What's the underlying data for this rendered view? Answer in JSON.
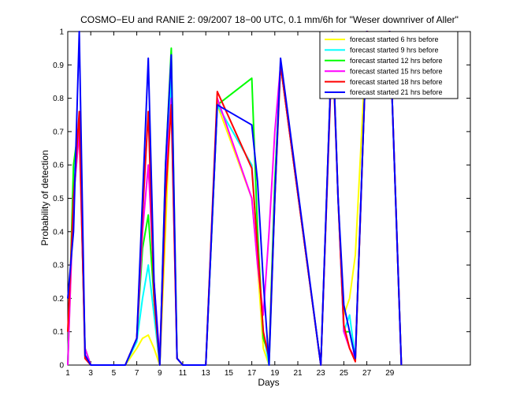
{
  "chart_data": {
    "type": "line",
    "title": "COSMO−EU and RANIE 2: 09/2007 18−00 UTC, 0.1 mm/6h for \"Weser downriver of Aller\"",
    "xlabel": "Days",
    "ylabel": "Probability of detection",
    "xlim": [
      1,
      36
    ],
    "ylim": [
      0,
      1
    ],
    "x_ticks": [
      1,
      3,
      5,
      7,
      9,
      11,
      13,
      15,
      17,
      19,
      21,
      23,
      25,
      27,
      29
    ],
    "y_ticks": [
      0,
      0.1,
      0.2,
      0.3,
      0.4,
      0.5,
      0.6,
      0.7,
      0.8,
      0.9,
      1
    ],
    "y_tick_labels": [
      "0",
      "0.1",
      "0.2",
      "0.3",
      "0.4",
      "0.5",
      "0.6",
      "0.7",
      "0.8",
      "0.9",
      "1"
    ],
    "grid": false,
    "legend_position": "top-right",
    "series": [
      {
        "name": "forecast started 6 hrs before",
        "color": "#ffff00",
        "points": [
          [
            1,
            0
          ],
          [
            1.5,
            0.5
          ],
          [
            2,
            0.7
          ],
          [
            2.5,
            0.05
          ],
          [
            3,
            0
          ],
          [
            3.5,
            0
          ],
          [
            4,
            0
          ],
          [
            5,
            0
          ],
          [
            6,
            0
          ],
          [
            7,
            0.05
          ],
          [
            7.5,
            0.08
          ],
          [
            8,
            0.09
          ],
          [
            8.5,
            0.05
          ],
          [
            9,
            0
          ],
          [
            9.5,
            0.4
          ],
          [
            10,
            0.85
          ],
          [
            10.5,
            0.02
          ],
          [
            11,
            0
          ],
          [
            12,
            0
          ],
          [
            13,
            0
          ],
          [
            14,
            0.78
          ],
          [
            17,
            0.5
          ],
          [
            17.5,
            0.3
          ],
          [
            18,
            0.05
          ],
          [
            18.5,
            0
          ],
          [
            19,
            0.5
          ],
          [
            19.5,
            0.9
          ],
          [
            23,
            0
          ],
          [
            24,
            1
          ],
          [
            24.5,
            0.5
          ],
          [
            25,
            0.15
          ],
          [
            25.5,
            0.2
          ],
          [
            26,
            0.33
          ],
          [
            27,
            1
          ],
          [
            28,
            0.99
          ],
          [
            29,
            1
          ],
          [
            30,
            0
          ]
        ]
      },
      {
        "name": "forecast started 9 hrs before",
        "color": "#00ffff",
        "points": [
          [
            1,
            0
          ],
          [
            1.5,
            0.55
          ],
          [
            2,
            0.72
          ],
          [
            2.5,
            0.05
          ],
          [
            3,
            0
          ],
          [
            3.5,
            0
          ],
          [
            4,
            0
          ],
          [
            5,
            0
          ],
          [
            6,
            0
          ],
          [
            7,
            0.07
          ],
          [
            7.5,
            0.2
          ],
          [
            8,
            0.3
          ],
          [
            8.5,
            0.15
          ],
          [
            9,
            0
          ],
          [
            9.5,
            0.5
          ],
          [
            10,
            0.88
          ],
          [
            10.5,
            0.02
          ],
          [
            11,
            0
          ],
          [
            12,
            0
          ],
          [
            13,
            0
          ],
          [
            14,
            0.78
          ],
          [
            17,
            0.6
          ],
          [
            17.5,
            0.35
          ],
          [
            18,
            0.1
          ],
          [
            18.5,
            0
          ],
          [
            19,
            0.55
          ],
          [
            19.5,
            0.9
          ],
          [
            23,
            0
          ],
          [
            24,
            1
          ],
          [
            24.5,
            0.5
          ],
          [
            25,
            0.1
          ],
          [
            25.5,
            0.15
          ],
          [
            26,
            0.02
          ],
          [
            27,
            1
          ],
          [
            28,
            0.99
          ],
          [
            29,
            1
          ],
          [
            30,
            0
          ]
        ]
      },
      {
        "name": "forecast started 12 hrs before",
        "color": "#00ff00",
        "points": [
          [
            1,
            0
          ],
          [
            1.5,
            0.6
          ],
          [
            2,
            0.73
          ],
          [
            2.5,
            0.05
          ],
          [
            3,
            0
          ],
          [
            3.5,
            0
          ],
          [
            4,
            0
          ],
          [
            5,
            0
          ],
          [
            6,
            0
          ],
          [
            7,
            0.08
          ],
          [
            7.5,
            0.35
          ],
          [
            8,
            0.45
          ],
          [
            8.5,
            0.2
          ],
          [
            9,
            0
          ],
          [
            9.5,
            0.6
          ],
          [
            10,
            0.95
          ],
          [
            10.5,
            0.02
          ],
          [
            11,
            0
          ],
          [
            12,
            0
          ],
          [
            13,
            0
          ],
          [
            14,
            0.78
          ],
          [
            17,
            0.86
          ],
          [
            17.5,
            0.4
          ],
          [
            18,
            0.08
          ],
          [
            18.5,
            0.03
          ],
          [
            19,
            0.55
          ],
          [
            19.5,
            0.9
          ],
          [
            23,
            0
          ],
          [
            24,
            1
          ],
          [
            24.5,
            0.5
          ],
          [
            25,
            0.1
          ],
          [
            25.5,
            0.1
          ],
          [
            26,
            0.02
          ],
          [
            27,
            1
          ],
          [
            28,
            0.99
          ],
          [
            29,
            1
          ],
          [
            30,
            0
          ]
        ]
      },
      {
        "name": "forecast started 15 hrs before",
        "color": "#ff00ff",
        "points": [
          [
            1,
            0
          ],
          [
            1.5,
            0.5
          ],
          [
            2,
            0.7
          ],
          [
            2.5,
            0.05
          ],
          [
            3,
            0
          ],
          [
            3.5,
            0
          ],
          [
            4,
            0
          ],
          [
            5,
            0
          ],
          [
            6,
            0
          ],
          [
            7,
            0.08
          ],
          [
            7.5,
            0.4
          ],
          [
            8,
            0.6
          ],
          [
            8.5,
            0.25
          ],
          [
            9,
            0.02
          ],
          [
            9.5,
            0.55
          ],
          [
            10,
            0.8
          ],
          [
            10.5,
            0.02
          ],
          [
            11,
            0
          ],
          [
            12,
            0
          ],
          [
            13,
            0
          ],
          [
            14,
            0.8
          ],
          [
            17,
            0.5
          ],
          [
            17.5,
            0.3
          ],
          [
            18,
            0.15
          ],
          [
            18.5,
            0.4
          ],
          [
            19,
            0.7
          ],
          [
            19.5,
            0.9
          ],
          [
            23,
            0
          ],
          [
            24,
            1
          ],
          [
            24.5,
            0.5
          ],
          [
            25,
            0.1
          ],
          [
            25.5,
            0.05
          ],
          [
            26,
            0.02
          ],
          [
            27,
            1
          ],
          [
            28,
            0.99
          ],
          [
            29,
            1
          ],
          [
            30,
            0
          ]
        ]
      },
      {
        "name": "forecast started 18 hrs before",
        "color": "#ff0000",
        "points": [
          [
            1,
            0.1
          ],
          [
            1.5,
            0.5
          ],
          [
            2,
            0.76
          ],
          [
            2.5,
            0.02
          ],
          [
            3,
            0
          ],
          [
            3.5,
            0
          ],
          [
            4,
            0
          ],
          [
            5,
            0
          ],
          [
            6,
            0
          ],
          [
            7,
            0.08
          ],
          [
            7.5,
            0.45
          ],
          [
            8,
            0.76
          ],
          [
            8.5,
            0.2
          ],
          [
            9,
            0
          ],
          [
            9.5,
            0.5
          ],
          [
            10,
            0.78
          ],
          [
            10.5,
            0.02
          ],
          [
            11,
            0
          ],
          [
            12,
            0
          ],
          [
            13,
            0
          ],
          [
            14,
            0.82
          ],
          [
            17,
            0.59
          ],
          [
            17.5,
            0.35
          ],
          [
            18,
            0.1
          ],
          [
            18.5,
            0.02
          ],
          [
            19,
            0.5
          ],
          [
            19.5,
            0.9
          ],
          [
            23,
            0
          ],
          [
            24,
            0.97
          ],
          [
            24.5,
            0.5
          ],
          [
            25,
            0.12
          ],
          [
            25.5,
            0.05
          ],
          [
            26,
            0.01
          ],
          [
            27,
            1
          ],
          [
            28,
            0.99
          ],
          [
            29,
            1
          ],
          [
            30,
            0
          ]
        ]
      },
      {
        "name": "forecast started 21 hrs before",
        "color": "#0000ff",
        "points": [
          [
            1,
            0.2
          ],
          [
            1.5,
            0.4
          ],
          [
            2,
            1
          ],
          [
            2.5,
            0.03
          ],
          [
            3,
            0
          ],
          [
            3.5,
            0
          ],
          [
            4,
            0
          ],
          [
            5,
            0
          ],
          [
            6,
            0
          ],
          [
            7,
            0.08
          ],
          [
            7.5,
            0.5
          ],
          [
            8,
            0.92
          ],
          [
            8.5,
            0.25
          ],
          [
            9,
            0
          ],
          [
            9.5,
            0.6
          ],
          [
            10,
            0.93
          ],
          [
            10.5,
            0.02
          ],
          [
            11,
            0
          ],
          [
            12,
            0
          ],
          [
            13,
            0
          ],
          [
            14,
            0.78
          ],
          [
            17,
            0.72
          ],
          [
            17.5,
            0.55
          ],
          [
            18,
            0.25
          ],
          [
            18.5,
            0
          ],
          [
            19,
            0.5
          ],
          [
            19.5,
            0.92
          ],
          [
            23,
            0
          ],
          [
            24,
            1
          ],
          [
            24.5,
            0.5
          ],
          [
            25,
            0.18
          ],
          [
            25.5,
            0.1
          ],
          [
            26,
            0.02
          ],
          [
            27,
            1
          ],
          [
            28,
            0.83
          ],
          [
            29,
            1
          ],
          [
            30,
            0
          ]
        ]
      }
    ]
  }
}
